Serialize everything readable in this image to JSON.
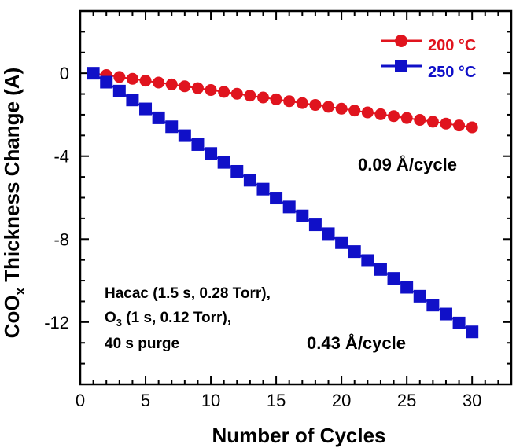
{
  "chart_data": {
    "type": "scatter",
    "xlabel": "Number of Cycles",
    "ylabel_main": "CoO",
    "ylabel_sub": "x",
    "ylabel_rest": " Thickness Change (A)",
    "xlim": [
      0,
      33
    ],
    "ylim": [
      -15,
      3
    ],
    "x_ticks": [
      0,
      5,
      10,
      15,
      20,
      25,
      30
    ],
    "y_ticks": [
      0,
      -4,
      -8,
      -12
    ],
    "grid": false,
    "legend_position": "top-right",
    "series": [
      {
        "name": "200 °C",
        "color": "#e0141e",
        "marker": "circle",
        "x": [
          1,
          2,
          3,
          4,
          5,
          6,
          7,
          8,
          9,
          10,
          11,
          12,
          13,
          14,
          15,
          16,
          17,
          18,
          19,
          20,
          21,
          22,
          23,
          24,
          25,
          26,
          27,
          28,
          29,
          30
        ],
        "y": [
          0,
          -0.09,
          -0.18,
          -0.27,
          -0.36,
          -0.45,
          -0.54,
          -0.63,
          -0.72,
          -0.81,
          -0.9,
          -0.99,
          -1.08,
          -1.17,
          -1.26,
          -1.35,
          -1.44,
          -1.53,
          -1.62,
          -1.71,
          -1.8,
          -1.89,
          -1.98,
          -2.07,
          -2.16,
          -2.25,
          -2.34,
          -2.43,
          -2.52,
          -2.61
        ]
      },
      {
        "name": "250 °C",
        "color": "#1010c8",
        "marker": "square",
        "x": [
          1,
          2,
          3,
          4,
          5,
          6,
          7,
          8,
          9,
          10,
          11,
          12,
          13,
          14,
          15,
          16,
          17,
          18,
          19,
          20,
          21,
          22,
          23,
          24,
          25,
          26,
          27,
          28,
          29,
          30
        ],
        "y": [
          0,
          -0.43,
          -0.86,
          -1.29,
          -1.72,
          -2.15,
          -2.58,
          -3.01,
          -3.44,
          -3.87,
          -4.3,
          -4.73,
          -5.16,
          -5.59,
          -6.02,
          -6.45,
          -6.88,
          -7.31,
          -7.74,
          -8.17,
          -8.6,
          -9.03,
          -9.46,
          -9.89,
          -10.32,
          -10.75,
          -11.18,
          -11.61,
          -12.04,
          -12.47
        ]
      }
    ],
    "annotations": {
      "rate_200": "0.09 Å/cycle",
      "rate_250": "0.43 Å/cycle",
      "conditions": {
        "line1": "Hacac (1.5 s, 0.28 Torr),",
        "line2_main": "O",
        "line2_sub": "3",
        "line2_rest": " (1 s, 0.12 Torr),",
        "line3": "40 s purge"
      }
    }
  }
}
